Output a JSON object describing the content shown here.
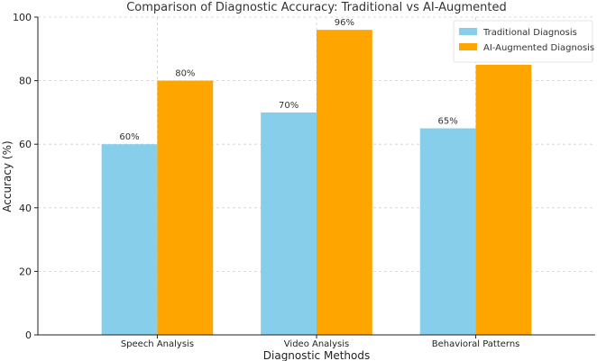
{
  "chart_data": {
    "type": "bar",
    "title": "Comparison of Diagnostic Accuracy: Traditional vs AI-Augmented",
    "xlabel": "Diagnostic Methods",
    "ylabel": "Accuracy (%)",
    "categories": [
      "Speech Analysis",
      "Video Analysis",
      "Behavioral Patterns"
    ],
    "series": [
      {
        "name": "Traditional Diagnosis",
        "values": [
          60,
          70,
          65
        ],
        "labels": [
          "60%",
          "70%",
          "65%"
        ],
        "color": "#87CEEB"
      },
      {
        "name": "AI-Augmented Diagnosis",
        "values": [
          80,
          96,
          85
        ],
        "labels": [
          "80%",
          "96%",
          "85%"
        ],
        "color": "#FFA500"
      }
    ],
    "ylim": [
      0,
      100
    ],
    "yticks": [
      0,
      20,
      40,
      60,
      80,
      100
    ],
    "grid": true,
    "legend_position": "top-right"
  }
}
